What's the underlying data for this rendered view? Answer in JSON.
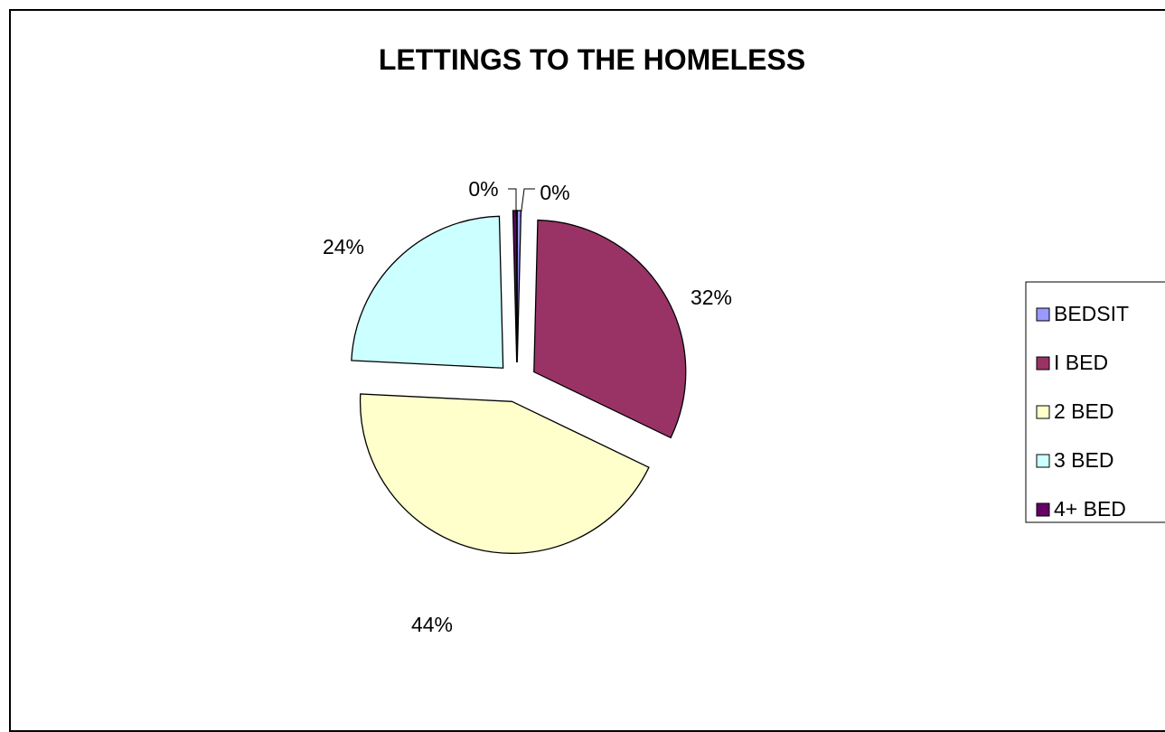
{
  "chart_data": {
    "type": "pie",
    "title": "LETTINGS TO THE HOMELESS",
    "categories": [
      "BEDSIT",
      "I BED",
      "2 BED",
      "3 BED",
      "4+ BED"
    ],
    "values": [
      0.4,
      32,
      44,
      24,
      0.4
    ],
    "data_labels": [
      "0%",
      "32%",
      "44%",
      "24%",
      "0%"
    ],
    "colors": [
      "#9999FF",
      "#993366",
      "#FFFFCC",
      "#CCFFFF",
      "#660066"
    ],
    "exploded": true,
    "legend_position": "right"
  }
}
